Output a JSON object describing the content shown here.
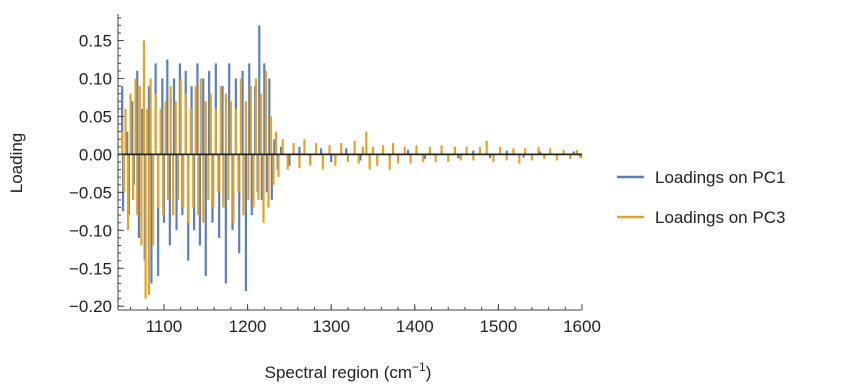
{
  "chart_data": {
    "type": "bar",
    "xlabel": "Spectral region (cm",
    "xlabel_sup": "−1",
    "xlabel_close": ")",
    "ylabel": "Loading",
    "xlim": [
      1045,
      1600
    ],
    "ylim": [
      -0.205,
      0.185
    ],
    "x_ticks": [
      {
        "value": 1100,
        "label": "1100"
      },
      {
        "value": 1200,
        "label": "1200"
      },
      {
        "value": 1300,
        "label": "1300"
      },
      {
        "value": 1400,
        "label": "1400"
      },
      {
        "value": 1500,
        "label": "1500"
      },
      {
        "value": 1600,
        "label": "1600"
      }
    ],
    "y_ticks": [
      {
        "value": 0.15,
        "label": "0.15"
      },
      {
        "value": 0.1,
        "label": "0.10"
      },
      {
        "value": 0.05,
        "label": "0.05"
      },
      {
        "value": 0.0,
        "label": "0.00"
      },
      {
        "value": -0.05,
        "label": "−0.05"
      },
      {
        "value": -0.1,
        "label": "−0.10"
      },
      {
        "value": -0.15,
        "label": "−0.15"
      },
      {
        "value": -0.2,
        "label": "−0.20"
      }
    ],
    "x_minor_step": 20,
    "y_minor_step": 0.01,
    "grid": false,
    "legend_position": "right",
    "series": [
      {
        "name": "Loadings on PC1",
        "color": "#5b7fbd",
        "points": [
          [
            1050,
            0.09
          ],
          [
            1051,
            -0.075
          ],
          [
            1056,
            0.03
          ],
          [
            1058,
            -0.08
          ],
          [
            1062,
            0.07
          ],
          [
            1064,
            -0.04
          ],
          [
            1068,
            0.11
          ],
          [
            1070,
            -0.11
          ],
          [
            1074,
            0.06
          ],
          [
            1077,
            -0.14
          ],
          [
            1082,
            0.09
          ],
          [
            1085,
            -0.17
          ],
          [
            1090,
            0.12
          ],
          [
            1093,
            -0.16
          ],
          [
            1098,
            0.1
          ],
          [
            1100,
            -0.09
          ],
          [
            1104,
            0.125
          ],
          [
            1107,
            -0.12
          ],
          [
            1112,
            0.1
          ],
          [
            1115,
            -0.1
          ],
          [
            1119,
            0.12
          ],
          [
            1122,
            -0.08
          ],
          [
            1126,
            0.11
          ],
          [
            1129,
            -0.14
          ],
          [
            1133,
            0.09
          ],
          [
            1136,
            -0.1
          ],
          [
            1140,
            0.12
          ],
          [
            1143,
            -0.12
          ],
          [
            1147,
            0.1
          ],
          [
            1150,
            -0.16
          ],
          [
            1154,
            0.11
          ],
          [
            1158,
            -0.09
          ],
          [
            1162,
            0.12
          ],
          [
            1166,
            -0.11
          ],
          [
            1170,
            0.09
          ],
          [
            1174,
            -0.17
          ],
          [
            1178,
            0.12
          ],
          [
            1182,
            -0.1
          ],
          [
            1186,
            0.1
          ],
          [
            1190,
            -0.13
          ],
          [
            1194,
            0.11
          ],
          [
            1198,
            -0.18
          ],
          [
            1202,
            0.12
          ],
          [
            1205,
            -0.08
          ],
          [
            1209,
            0.09
          ],
          [
            1212,
            -0.05
          ],
          [
            1214,
            0.17
          ],
          [
            1217,
            -0.06
          ],
          [
            1220,
            0.12
          ],
          [
            1223,
            -0.05
          ],
          [
            1226,
            0.1
          ],
          [
            1229,
            -0.06
          ],
          [
            1232,
            0.02
          ],
          [
            1236,
            -0.02
          ],
          [
            1240,
            0.01
          ],
          [
            1250,
            -0.015
          ],
          [
            1262,
            0.01
          ],
          [
            1275,
            -0.012
          ],
          [
            1288,
            0.008
          ],
          [
            1300,
            -0.01
          ],
          [
            1318,
            0.008
          ],
          [
            1335,
            -0.008
          ],
          [
            1350,
            0.006
          ],
          [
            1370,
            -0.006
          ],
          [
            1392,
            0.006
          ],
          [
            1412,
            -0.006
          ],
          [
            1432,
            0.005
          ],
          [
            1452,
            -0.005
          ],
          [
            1470,
            0.005
          ],
          [
            1490,
            -0.005
          ],
          [
            1510,
            0.005
          ],
          [
            1530,
            -0.004
          ],
          [
            1550,
            0.004
          ],
          [
            1570,
            -0.004
          ],
          [
            1590,
            0.004
          ],
          [
            1598,
            -0.004
          ]
        ]
      },
      {
        "name": "Loadings on PC3",
        "color": "#e3a327",
        "points": [
          [
            1050,
            0.03
          ],
          [
            1052,
            -0.05
          ],
          [
            1054,
            0.06
          ],
          [
            1057,
            -0.1
          ],
          [
            1060,
            0.08
          ],
          [
            1063,
            -0.06
          ],
          [
            1066,
            0.1
          ],
          [
            1068,
            -0.08
          ],
          [
            1071,
            0.09
          ],
          [
            1073,
            -0.12
          ],
          [
            1076,
            0.15
          ],
          [
            1078,
            -0.19
          ],
          [
            1080,
            0.06
          ],
          [
            1082,
            -0.185
          ],
          [
            1084,
            0.1
          ],
          [
            1087,
            -0.12
          ],
          [
            1090,
            0.08
          ],
          [
            1093,
            -0.07
          ],
          [
            1096,
            0.06
          ],
          [
            1099,
            -0.08
          ],
          [
            1102,
            0.07
          ],
          [
            1105,
            -0.06
          ],
          [
            1108,
            0.09
          ],
          [
            1111,
            -0.08
          ],
          [
            1114,
            0.07
          ],
          [
            1117,
            -0.06
          ],
          [
            1120,
            0.1
          ],
          [
            1123,
            -0.07
          ],
          [
            1126,
            0.08
          ],
          [
            1129,
            -0.09
          ],
          [
            1132,
            0.06
          ],
          [
            1135,
            -0.07
          ],
          [
            1138,
            0.09
          ],
          [
            1141,
            -0.08
          ],
          [
            1144,
            0.1
          ],
          [
            1147,
            -0.09
          ],
          [
            1150,
            0.07
          ],
          [
            1153,
            -0.06
          ],
          [
            1156,
            0.08
          ],
          [
            1159,
            -0.07
          ],
          [
            1162,
            0.06
          ],
          [
            1165,
            -0.05
          ],
          [
            1168,
            0.09
          ],
          [
            1171,
            -0.07
          ],
          [
            1174,
            0.08
          ],
          [
            1177,
            -0.06
          ],
          [
            1180,
            0.07
          ],
          [
            1183,
            -0.09
          ],
          [
            1186,
            0.06
          ],
          [
            1189,
            -0.05
          ],
          [
            1192,
            0.1
          ],
          [
            1195,
            -0.08
          ],
          [
            1198,
            0.07
          ],
          [
            1201,
            -0.06
          ],
          [
            1204,
            0.09
          ],
          [
            1207,
            -0.07
          ],
          [
            1210,
            0.1
          ],
          [
            1213,
            -0.06
          ],
          [
            1216,
            0.08
          ],
          [
            1219,
            -0.09
          ],
          [
            1222,
            0.11
          ],
          [
            1225,
            -0.07
          ],
          [
            1228,
            0.05
          ],
          [
            1231,
            -0.04
          ],
          [
            1234,
            0.03
          ],
          [
            1237,
            -0.03
          ],
          [
            1242,
            0.02
          ],
          [
            1248,
            -0.02
          ],
          [
            1255,
            0.015
          ],
          [
            1262,
            -0.018
          ],
          [
            1268,
            0.02
          ],
          [
            1275,
            -0.015
          ],
          [
            1282,
            0.015
          ],
          [
            1290,
            -0.02
          ],
          [
            1298,
            0.012
          ],
          [
            1305,
            -0.015
          ],
          [
            1312,
            0.015
          ],
          [
            1320,
            -0.01
          ],
          [
            1328,
            0.018
          ],
          [
            1333,
            -0.012
          ],
          [
            1338,
            0.01
          ],
          [
            1342,
            0.03
          ],
          [
            1346,
            -0.02
          ],
          [
            1350,
            0.01
          ],
          [
            1355,
            -0.015
          ],
          [
            1362,
            0.012
          ],
          [
            1370,
            -0.02
          ],
          [
            1374,
            0.015
          ],
          [
            1380,
            -0.012
          ],
          [
            1388,
            0.01
          ],
          [
            1395,
            -0.012
          ],
          [
            1402,
            0.012
          ],
          [
            1410,
            -0.01
          ],
          [
            1418,
            0.01
          ],
          [
            1425,
            -0.01
          ],
          [
            1432,
            0.012
          ],
          [
            1440,
            -0.01
          ],
          [
            1448,
            0.01
          ],
          [
            1455,
            -0.008
          ],
          [
            1462,
            0.01
          ],
          [
            1470,
            -0.008
          ],
          [
            1478,
            0.01
          ],
          [
            1486,
            0.018
          ],
          [
            1494,
            -0.01
          ],
          [
            1502,
            0.01
          ],
          [
            1510,
            -0.008
          ],
          [
            1518,
            0.008
          ],
          [
            1525,
            -0.012
          ],
          [
            1532,
            0.008
          ],
          [
            1540,
            -0.008
          ],
          [
            1548,
            0.01
          ],
          [
            1555,
            -0.006
          ],
          [
            1562,
            0.008
          ],
          [
            1570,
            -0.008
          ],
          [
            1578,
            0.006
          ],
          [
            1586,
            -0.006
          ],
          [
            1594,
            0.006
          ],
          [
            1599,
            -0.005
          ]
        ]
      }
    ]
  }
}
